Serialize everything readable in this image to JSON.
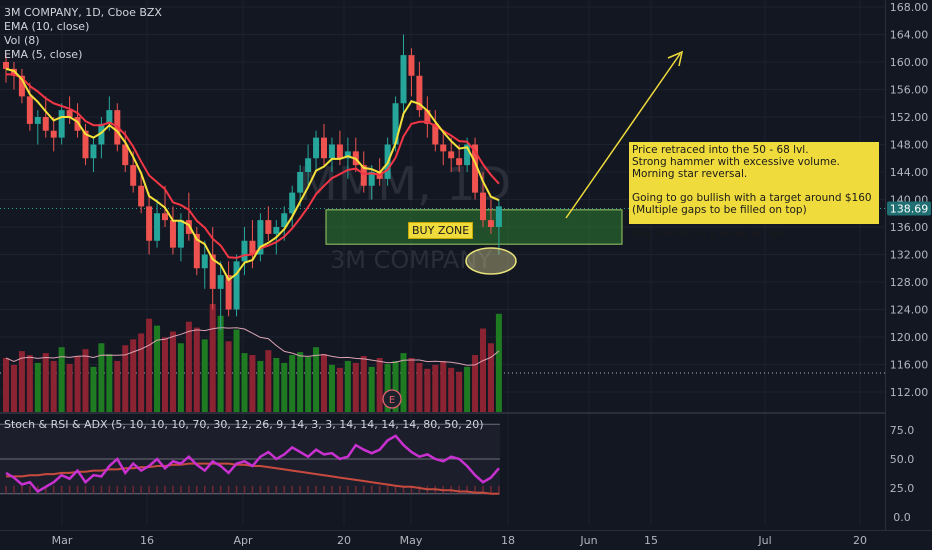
{
  "legend": {
    "title": "3M COMPANY, 1D, Cboe BZX",
    "ema10": "EMA (10, close)",
    "vol": "Vol (8)",
    "ema5": "EMA (5, close)",
    "oscillator": "Stoch & RSI & ADX (5, 10, 10, 10, 70, 30, 12, 26, 9, 14, 3, 3, 14, 14, 14, 14, 80, 50, 20)"
  },
  "watermark": {
    "symbol": "MMM, 1D",
    "name": "3M COMPANY"
  },
  "annotation": {
    "text": "Price retraced into the 50 - 68 lvl.\nStrong hammer with excessive volume.\nMorning star reversal.\n\nGoing to go bullish with a target around $160\n(Multiple gaps to be filled on top)\n\nBuy n Hold for a week or two."
  },
  "buy_zone": {
    "label": "BUY ZONE",
    "low": 133.5,
    "high": 138.5
  },
  "earnings_marker": "E",
  "last_price_label": "138.69",
  "colors": {
    "up": "#26a69a",
    "down": "#ef5350",
    "ema10": "#f23645",
    "ema5": "#f5e13a",
    "vol_up": "#1e7b22",
    "vol_down": "#8c2332",
    "osc_fast": "#c830d0",
    "osc_slow": "#c74a3e"
  },
  "chart_data": [
    {
      "type": "candlestick",
      "title": "3M COMPANY, 1D, Cboe BZX",
      "ylim": [
        110,
        168
      ],
      "y_ticks": [
        "112.00",
        "116.00",
        "120.00",
        "124.00",
        "128.00",
        "132.00",
        "136.00",
        "140.00",
        "144.00",
        "148.00",
        "152.00",
        "156.00",
        "160.00",
        "164.00",
        "168.00"
      ],
      "x_ticks": [
        "Mar",
        "16",
        "Apr",
        "20",
        "May",
        "18",
        "Jun",
        "15",
        "Jul",
        "20"
      ],
      "ohlc": [
        [
          160,
          161,
          157,
          159
        ],
        [
          159,
          160,
          156,
          158
        ],
        [
          158,
          159,
          154,
          155
        ],
        [
          155,
          157,
          150,
          151
        ],
        [
          151,
          153,
          148,
          152
        ],
        [
          152,
          155,
          149,
          150
        ],
        [
          150,
          152,
          147,
          149
        ],
        [
          149,
          154,
          148,
          153
        ],
        [
          153,
          155,
          151,
          152
        ],
        [
          152,
          154,
          149,
          150
        ],
        [
          150,
          151,
          145,
          146
        ],
        [
          146,
          149,
          144,
          148
        ],
        [
          148,
          152,
          146,
          151
        ],
        [
          151,
          155,
          150,
          153
        ],
        [
          153,
          154,
          147,
          148
        ],
        [
          148,
          150,
          144,
          145
        ],
        [
          145,
          147,
          141,
          142
        ],
        [
          142,
          144,
          138,
          139
        ],
        [
          139,
          141,
          132,
          134
        ],
        [
          134,
          140,
          133,
          138
        ],
        [
          138,
          142,
          136,
          137
        ],
        [
          137,
          139,
          132,
          133
        ],
        [
          133,
          138,
          131,
          137
        ],
        [
          137,
          141,
          134,
          135
        ],
        [
          135,
          136,
          129,
          130
        ],
        [
          130,
          134,
          127,
          132
        ],
        [
          132,
          136,
          124,
          127
        ],
        [
          127,
          131,
          121,
          129
        ],
        [
          129,
          131,
          123,
          124
        ],
        [
          124,
          132,
          123,
          131
        ],
        [
          131,
          136,
          129,
          134
        ],
        [
          134,
          137,
          130,
          132
        ],
        [
          132,
          138,
          131,
          137
        ],
        [
          137,
          139,
          134,
          135
        ],
        [
          135,
          137,
          132,
          136
        ],
        [
          136,
          139,
          134,
          138
        ],
        [
          138,
          142,
          136,
          141
        ],
        [
          141,
          145,
          139,
          144
        ],
        [
          144,
          148,
          142,
          146
        ],
        [
          146,
          150,
          144,
          149
        ],
        [
          149,
          151,
          145,
          146
        ],
        [
          146,
          149,
          144,
          148
        ],
        [
          148,
          150,
          145,
          146
        ],
        [
          146,
          149,
          143,
          147
        ],
        [
          147,
          149,
          144,
          145
        ],
        [
          145,
          147,
          141,
          142
        ],
        [
          142,
          145,
          140,
          144
        ],
        [
          144,
          146,
          142,
          143
        ],
        [
          143,
          149,
          142,
          148
        ],
        [
          148,
          155,
          147,
          154
        ],
        [
          154,
          164,
          152,
          161
        ],
        [
          161,
          162,
          155,
          158
        ],
        [
          158,
          160,
          152,
          153
        ],
        [
          153,
          155,
          149,
          151
        ],
        [
          151,
          153,
          147,
          148
        ],
        [
          148,
          150,
          145,
          147
        ],
        [
          147,
          149,
          144,
          146
        ],
        [
          146,
          148,
          144,
          145
        ],
        [
          145,
          149,
          144,
          148
        ],
        [
          148,
          149,
          140,
          141
        ],
        [
          141,
          144,
          136,
          137
        ],
        [
          137,
          140,
          135,
          136
        ],
        [
          136,
          140,
          132,
          139
        ]
      ],
      "ema10": [
        158.2,
        158.2,
        157.7,
        156.5,
        155.7,
        154.7,
        154.0,
        153.6,
        153.2,
        152.6,
        151.4,
        150.8,
        150.8,
        151.2,
        150.6,
        149.4,
        147.7,
        145.5,
        143.5,
        142.5,
        141.5,
        139.6,
        139.2,
        138.5,
        136.9,
        135.9,
        134.3,
        133.3,
        131.6,
        131.5,
        131.9,
        132.0,
        132.9,
        133.3,
        133.8,
        134.6,
        135.8,
        137.3,
        138.9,
        140.8,
        142.0,
        143.1,
        143.7,
        144.3,
        144.5,
        143.7,
        143.8,
        143.6,
        144.3,
        146.1,
        149.2,
        151.0,
        151.3,
        151.3,
        150.7,
        150.0,
        149.3,
        148.5,
        148.4,
        147.0,
        145.1,
        143.6,
        142.3
      ],
      "ema5": [
        159.0,
        158.7,
        157.5,
        155.3,
        154.2,
        152.8,
        151.5,
        152.0,
        152.0,
        151.3,
        149.5,
        149.0,
        149.7,
        150.8,
        149.9,
        148.3,
        146.2,
        143.8,
        140.5,
        139.7,
        138.8,
        136.9,
        136.9,
        136.3,
        134.2,
        133.5,
        131.3,
        130.5,
        128.3,
        129.2,
        130.8,
        131.2,
        133.1,
        133.7,
        134.5,
        135.7,
        137.5,
        139.7,
        141.8,
        144.2,
        144.8,
        145.9,
        145.9,
        146.3,
        145.9,
        144.6,
        144.4,
        143.9,
        145.3,
        148.2,
        152.5,
        154.3,
        153.9,
        152.9,
        151.3,
        149.8,
        148.5,
        147.4,
        147.6,
        145.4,
        142.6,
        140.4,
        139.9
      ]
    },
    {
      "type": "bar",
      "title": "Vol (8)",
      "values": [
        55,
        48,
        62,
        58,
        50,
        60,
        52,
        66,
        49,
        57,
        64,
        46,
        70,
        59,
        52,
        68,
        74,
        80,
        95,
        88,
        76,
        82,
        70,
        92,
        86,
        74,
        110,
        98,
        72,
        84,
        60,
        58,
        52,
        63,
        55,
        50,
        58,
        61,
        56,
        66,
        59,
        48,
        45,
        52,
        50,
        57,
        46,
        55,
        49,
        52,
        60,
        55,
        50,
        44,
        48,
        52,
        45,
        41,
        46,
        58,
        85,
        70,
        100
      ]
    },
    {
      "type": "line",
      "title": "Stoch & RSI & ADX (5, 10, 10, 10, 70, 30, 12, 26, 9, 14, 3, 3, 14, 14, 14, 14, 80, 50, 20)",
      "ylim": [
        -5,
        82
      ],
      "y_ticks": [
        "0.0",
        "25.0",
        "50.0",
        "75.0"
      ],
      "levels": [
        80,
        50,
        20
      ],
      "series": [
        {
          "values": [
            38,
            34,
            28,
            30,
            22,
            26,
            30,
            36,
            33,
            40,
            30,
            36,
            35,
            44,
            50,
            38,
            46,
            40,
            44,
            50,
            42,
            48,
            46,
            52,
            45,
            40,
            48,
            44,
            38,
            46,
            48,
            44,
            52,
            56,
            50,
            54,
            60,
            56,
            52,
            58,
            54,
            55,
            50,
            52,
            62,
            58,
            55,
            58,
            66,
            70,
            62,
            56,
            52,
            54,
            50,
            48,
            52,
            50,
            44,
            36,
            30,
            34,
            42
          ]
        },
        {
          "values": [
            35,
            35,
            35,
            36,
            36,
            37,
            37,
            38,
            38,
            39,
            39,
            40,
            40,
            41,
            41,
            42,
            42,
            43,
            43,
            44,
            44,
            45,
            45,
            46,
            46,
            46,
            46,
            46,
            46,
            45,
            45,
            44,
            44,
            43,
            42,
            41,
            40,
            39,
            38,
            37,
            36,
            35,
            34,
            33,
            32,
            31,
            30,
            29,
            28,
            27,
            26,
            26,
            25,
            24,
            24,
            23,
            23,
            22,
            22,
            21,
            21,
            20,
            20
          ]
        }
      ]
    }
  ]
}
